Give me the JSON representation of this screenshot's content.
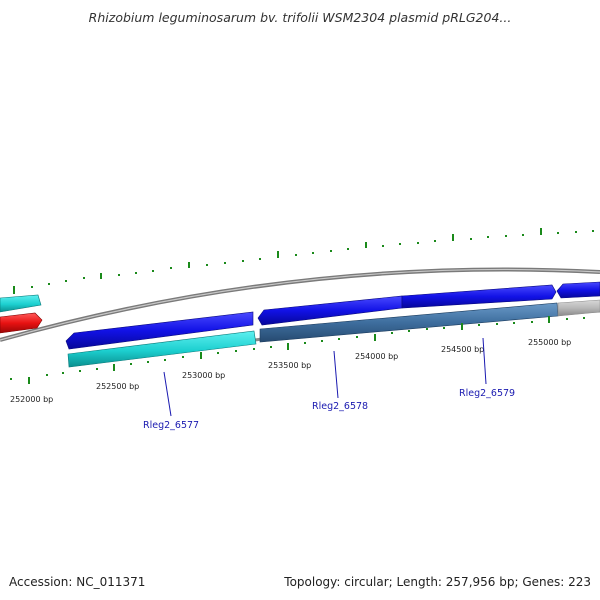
{
  "header": {
    "title": "Rhizobium leguminosarum bv. trifolii WSM2304 plasmid pRLG204..."
  },
  "footer": {
    "accession": "Accession: NC_011371",
    "summary": "Topology: circular; Length: 257,956 bp; Genes: 223"
  },
  "ruler": {
    "labels": [
      "252000 bp",
      "252500 bp",
      "253000 bp",
      "253500 bp",
      "254000 bp",
      "254500 bp",
      "255000 bp"
    ]
  },
  "genes": {
    "labels": [
      "Rleg2_6577",
      "Rleg2_6578",
      "Rleg2_6579"
    ]
  },
  "colors": {
    "forward_strand": "#1010e0",
    "reverse_strand": "#20c8c8",
    "highlight": "#e81010",
    "selected_region": "#3a6a9a",
    "backbone": "#888888",
    "ticks": "#1a8a1a"
  }
}
